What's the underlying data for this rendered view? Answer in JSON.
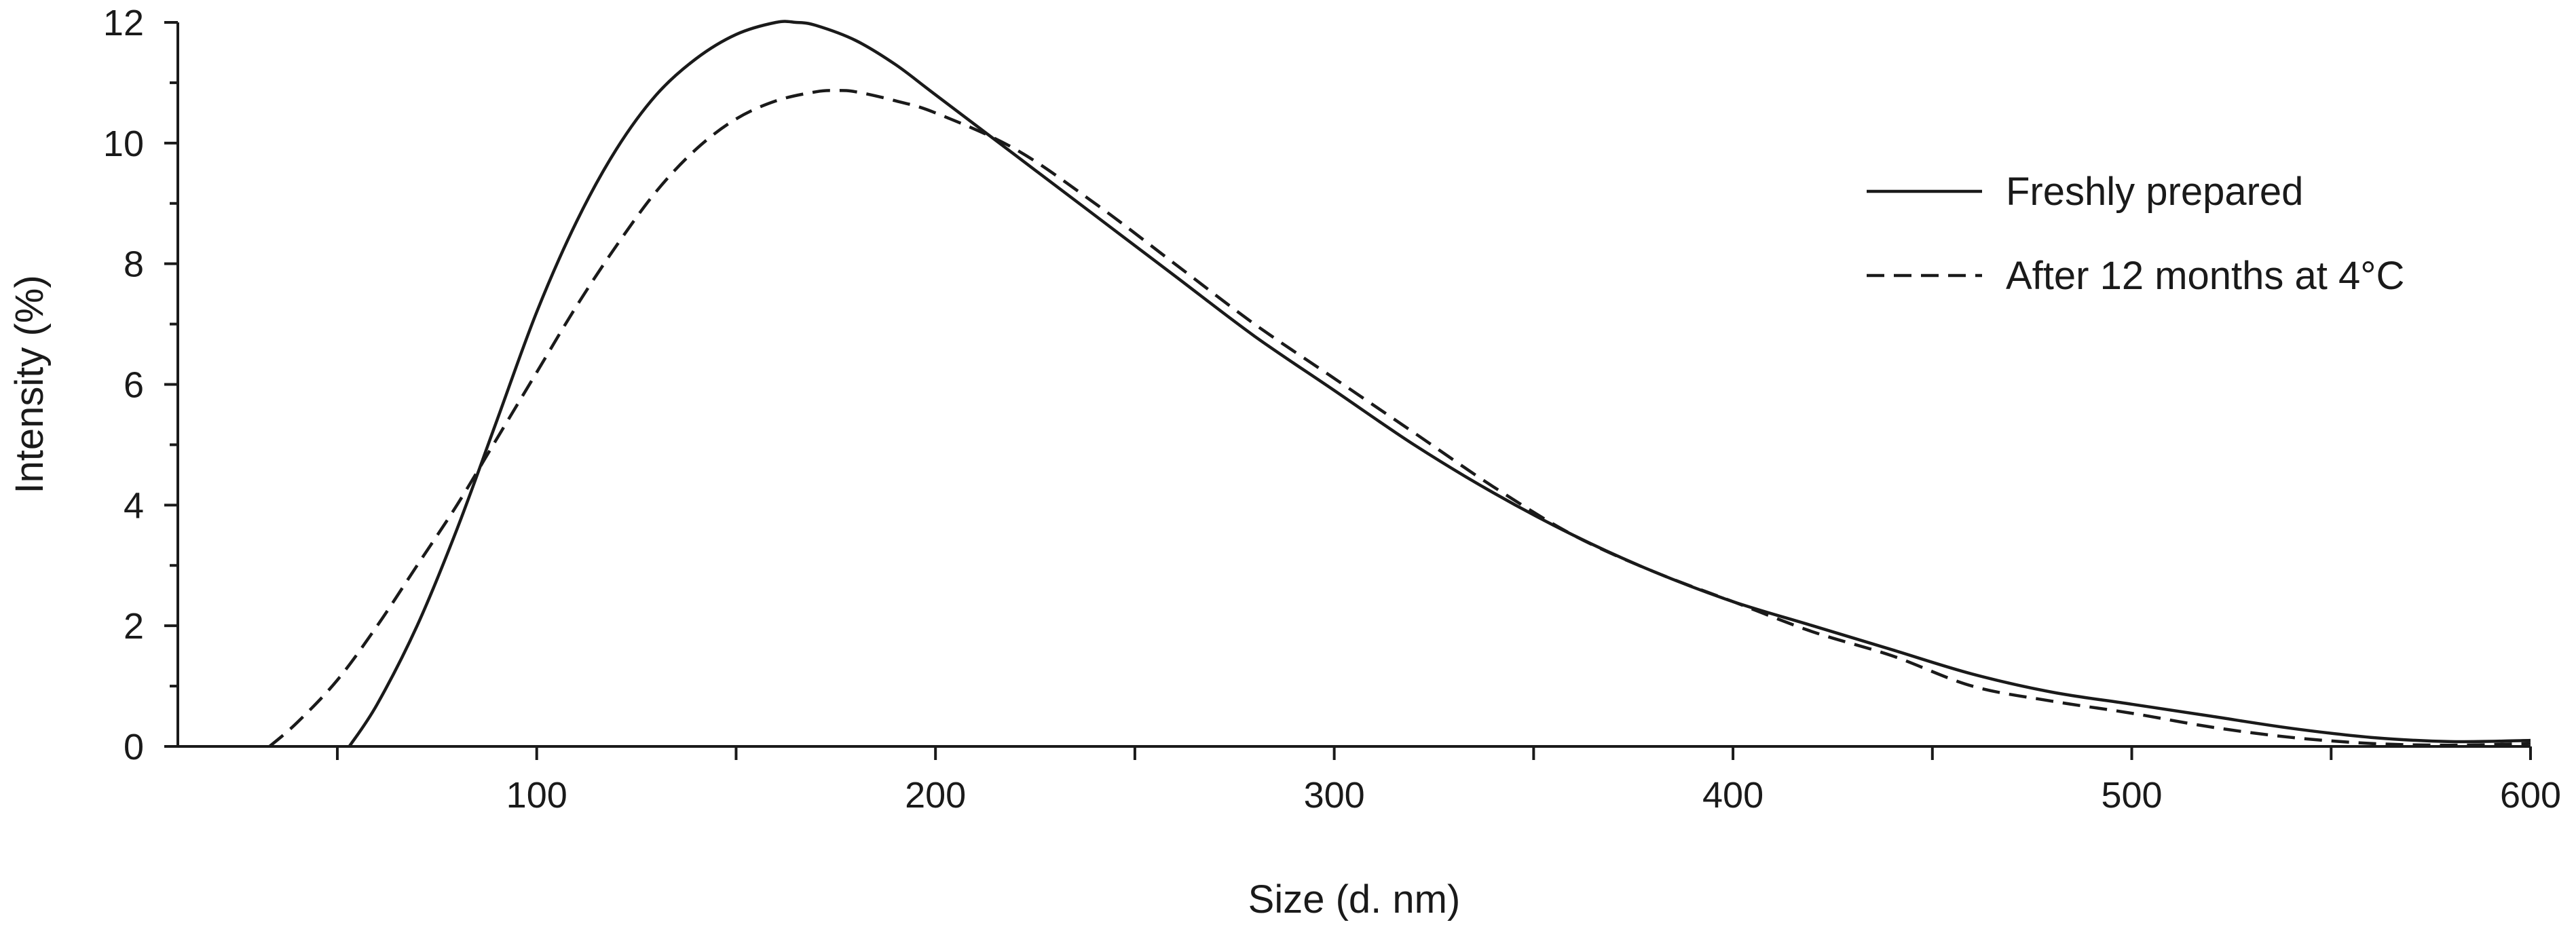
{
  "chart_data": {
    "type": "line",
    "xlabel": "Size (d. nm)",
    "ylabel": "Intensity (%)",
    "xlim": [
      10,
      600
    ],
    "ylim": [
      0,
      12
    ],
    "x_ticks_major": [
      100,
      200,
      300,
      400,
      500,
      600
    ],
    "x_ticks_minor": [
      50,
      150,
      250,
      350,
      450,
      550
    ],
    "y_ticks_major": [
      0,
      2,
      4,
      6,
      8,
      10,
      12
    ],
    "y_ticks_minor": [
      1,
      3,
      5,
      7,
      9,
      11
    ],
    "grid": false,
    "legend_position": "top-right",
    "series": [
      {
        "name": "Freshly prepared",
        "style": "solid",
        "x": [
          53,
          60,
          70,
          80,
          90,
          100,
          110,
          120,
          130,
          140,
          150,
          160,
          165,
          170,
          180,
          190,
          200,
          220,
          240,
          260,
          280,
          300,
          320,
          340,
          360,
          380,
          400,
          420,
          440,
          460,
          480,
          500,
          520,
          540,
          560,
          580,
          600
        ],
        "y": [
          0,
          0.7,
          2.0,
          3.6,
          5.4,
          7.2,
          8.7,
          9.9,
          10.8,
          11.4,
          11.8,
          12.0,
          12.0,
          11.95,
          11.7,
          11.3,
          10.8,
          9.8,
          8.8,
          7.8,
          6.8,
          5.9,
          5.0,
          4.2,
          3.5,
          2.9,
          2.4,
          2.0,
          1.6,
          1.2,
          0.9,
          0.7,
          0.5,
          0.3,
          0.15,
          0.08,
          0.1
        ]
      },
      {
        "name": "After 12 months at 4°C",
        "style": "dashed",
        "x": [
          33,
          40,
          50,
          60,
          70,
          80,
          90,
          100,
          110,
          120,
          130,
          140,
          150,
          160,
          170,
          175,
          180,
          190,
          200,
          220,
          240,
          260,
          280,
          300,
          320,
          340,
          360,
          380,
          400,
          420,
          440,
          460,
          480,
          500,
          520,
          540,
          560,
          580,
          600
        ],
        "y": [
          0,
          0.4,
          1.1,
          2.0,
          3.0,
          4.0,
          5.1,
          6.2,
          7.3,
          8.3,
          9.2,
          9.9,
          10.4,
          10.7,
          10.85,
          10.87,
          10.85,
          10.7,
          10.5,
          9.9,
          9.0,
          8.0,
          7.0,
          6.1,
          5.2,
          4.3,
          3.5,
          2.9,
          2.4,
          1.9,
          1.5,
          1.0,
          0.75,
          0.55,
          0.32,
          0.15,
          0.05,
          0.02,
          0.05
        ]
      }
    ]
  }
}
